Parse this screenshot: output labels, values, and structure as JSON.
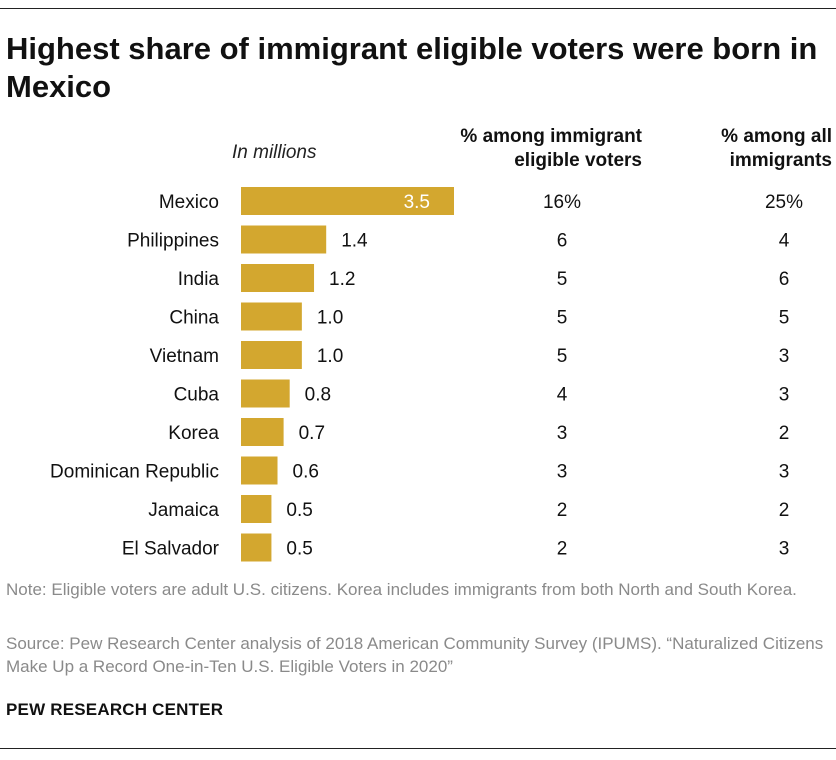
{
  "title": "Highest share of immigrant eligible voters were born in Mexico",
  "units_label": "In millions",
  "column_headers": {
    "eligible_voters": "% among immigrant eligible voters",
    "all_immigrants": "% among all immigrants"
  },
  "chart_data": {
    "type": "bar",
    "orientation": "horizontal",
    "title": "Highest share of immigrant eligible voters were born in Mexico",
    "xlabel": "In millions",
    "ylabel": "",
    "categories": [
      "Mexico",
      "Philippines",
      "India",
      "China",
      "Vietnam",
      "Cuba",
      "Korea",
      "Dominican Republic",
      "Jamaica",
      "El Salvador"
    ],
    "values": [
      3.5,
      1.4,
      1.2,
      1.0,
      1.0,
      0.8,
      0.7,
      0.6,
      0.5,
      0.5
    ],
    "value_labels": [
      "3.5",
      "1.4",
      "1.2",
      "1.0",
      "1.0",
      "0.8",
      "0.7",
      "0.6",
      "0.5",
      "0.5"
    ],
    "xlim": [
      0,
      3.5
    ],
    "grid": false,
    "table_columns": [
      {
        "name": "% among immigrant eligible voters",
        "values": [
          "16%",
          "6",
          "5",
          "5",
          "5",
          "4",
          "3",
          "3",
          "2",
          "2"
        ]
      },
      {
        "name": "% among all immigrants",
        "values": [
          "25%",
          "4",
          "6",
          "5",
          "3",
          "3",
          "2",
          "3",
          "2",
          "3"
        ]
      }
    ],
    "bar_color": "#d3a72f"
  },
  "note": "Note: Eligible voters are adult U.S. citizens. Korea includes immigrants from both North and South Korea.",
  "source": "Source: Pew Research Center analysis of 2018 American Community Survey (IPUMS). “Naturalized Citizens Make Up a Record One-in-Ten U.S. Eligible Voters in 2020”",
  "brand": "PEW RESEARCH CENTER"
}
